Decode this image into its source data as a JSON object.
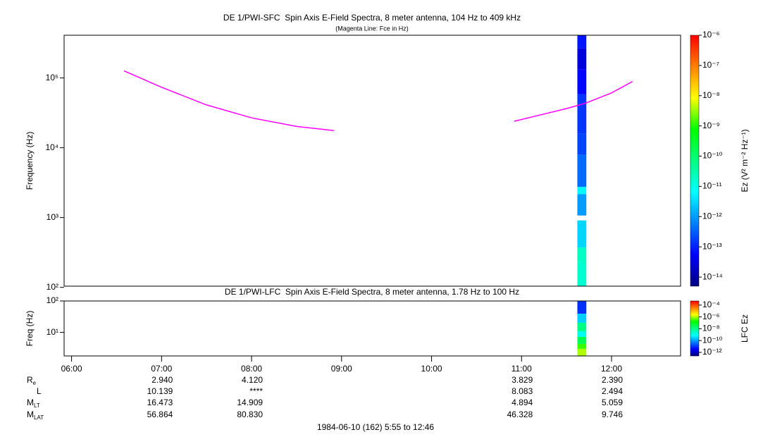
{
  "chart_data": [
    {
      "type": "heatmap",
      "title": "DE 1/PWI-SFC  Spin Axis E-Field Spectra, 8 meter antenna, 104 Hz to 409 kHz",
      "subtitle": "(Magenta Line: Fce in Hz)",
      "y_label": "Frequency (Hz)",
      "xlim": [
        5.917,
        12.767
      ],
      "ylim": [
        104,
        409000
      ],
      "log_y": true,
      "yticks": [
        {
          "value": 100,
          "label": "10²"
        },
        {
          "value": 1000,
          "label": "10³"
        },
        {
          "value": 10000,
          "label": "10⁴"
        },
        {
          "value": 100000,
          "label": "10⁵"
        }
      ],
      "x_bins": [
        11.62,
        11.72
      ],
      "y_bins": [
        104,
        233,
        373,
        910,
        1070,
        2170,
        2750,
        7900,
        16000,
        58200,
        132000,
        268000,
        409000
      ],
      "values": [
        [
          1.6e-11,
          2e-11,
          3e-12,
          null,
          1e-12,
          6e-12,
          4e-13,
          2e-13,
          1.5e-13,
          6e-14,
          3e-14,
          8e-14
        ]
      ],
      "zlim": [
        5e-15,
        1e-06
      ],
      "log_z": true,
      "zticks": [
        {
          "value": 1e-14,
          "label": "10⁻¹⁴"
        },
        {
          "value": 1e-13,
          "label": "10⁻¹³"
        },
        {
          "value": 1e-12,
          "label": "10⁻¹²"
        },
        {
          "value": 1e-11,
          "label": "10⁻¹¹"
        },
        {
          "value": 1e-10,
          "label": "10⁻¹⁰"
        },
        {
          "value": 1e-09,
          "label": "10⁻⁹"
        },
        {
          "value": 1e-08,
          "label": "10⁻⁸"
        },
        {
          "value": 1e-07,
          "label": "10⁻⁷"
        },
        {
          "value": 1e-06,
          "label": "10⁻⁶"
        }
      ],
      "z_label": "Ez (V² m⁻² Hz⁻¹)",
      "colormap": [
        "#000080",
        "#0000ff",
        "#0080ff",
        "#00ffff",
        "#00ff80",
        "#00ff00",
        "#ffff00",
        "#ff8000",
        "#ff0000"
      ],
      "series": [
        {
          "color": "#ff00ff",
          "x": [
            6.583,
            7,
            7.5,
            8,
            8.5,
            8.917,
            10,
            10.917,
            11.5,
            11.7,
            12,
            12.233
          ],
          "values": [
            126000,
            73600,
            41000,
            26800,
            20200,
            17600,
            null,
            23900,
            36400,
            43000,
            61100,
            89000
          ]
        }
      ]
    },
    {
      "type": "heatmap",
      "title": "DE 1/PWI-LFC  Spin Axis E-Field Spectra, 8 meter antenna, 1.78 Hz to 100 Hz",
      "y_label": "Freq (Hz)",
      "xlim": [
        5.917,
        12.767
      ],
      "xticks": [
        {
          "value": 6,
          "label": "06:00"
        },
        {
          "value": 7,
          "label": "07:00"
        },
        {
          "value": 8,
          "label": "08:00"
        },
        {
          "value": 9,
          "label": "09:00"
        },
        {
          "value": 10,
          "label": "10:00"
        },
        {
          "value": 11,
          "label": "11:00"
        },
        {
          "value": 12,
          "label": "12:00"
        }
      ],
      "ylim": [
        1.78,
        100
      ],
      "log_y": true,
      "yticks": [
        {
          "value": 10,
          "label": "10¹"
        },
        {
          "value": 100,
          "label": "10²"
        }
      ],
      "x_bins": [
        11.62,
        11.72
      ],
      "y_bins": [
        1.78,
        3.0,
        4.3,
        7.2,
        10.8,
        20.2,
        39.5,
        100
      ],
      "values": [
        [
          1e-06,
          3e-07,
          3e-08,
          1e-09,
          1e-08,
          3e-10,
          1e-11
        ]
      ],
      "zlim": [
        2.5e-13,
        0.0005
      ],
      "log_z": true,
      "zticks": [
        {
          "value": 1e-12,
          "label": "10⁻¹²"
        },
        {
          "value": 1e-10,
          "label": "10⁻¹⁰"
        },
        {
          "value": 1e-08,
          "label": "10⁻⁸"
        },
        {
          "value": 1e-06,
          "label": "10⁻⁶"
        },
        {
          "value": 0.0001,
          "label": "10⁻⁴"
        }
      ],
      "z_label": "LFC Ez",
      "colormap": [
        "#000080",
        "#0000ff",
        "#0080ff",
        "#00ffff",
        "#00ff80",
        "#00ff00",
        "#ffff00",
        "#ff8000",
        "#ff0000"
      ]
    }
  ],
  "ephemeris": {
    "rows": [
      {
        "label": "R",
        "sub": "e",
        "values": [
          null,
          "2.940",
          "4.120",
          null,
          null,
          "3.829",
          "2.390"
        ]
      },
      {
        "label": "L",
        "values": [
          null,
          "10.139",
          "****",
          null,
          null,
          "8.083",
          "2.494"
        ]
      },
      {
        "label": "M",
        "sub": "LT",
        "values": [
          null,
          "16.473",
          "14.909",
          null,
          null,
          "4.894",
          "5.059"
        ]
      },
      {
        "label": "M",
        "sub": "LAT",
        "values": [
          null,
          "56.864",
          "80.830",
          null,
          null,
          "46.328",
          "9.746"
        ]
      }
    ]
  },
  "footer": "1984-06-10 (162) 5:55 to 12:46"
}
